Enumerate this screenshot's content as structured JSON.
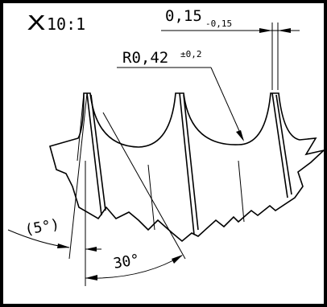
{
  "drawing": {
    "scale": {
      "marker": "X",
      "value": "10:1"
    },
    "width_dimension": {
      "value": "0,15",
      "tolerance": "-0,15"
    },
    "radius_dimension": {
      "value": "R0,42",
      "tolerance": "±0,2"
    },
    "angle_small": "(5°)",
    "angle_large": "30°",
    "colors": {
      "background": "#000000",
      "sheet": "#ffffff",
      "ink": "#000000"
    }
  }
}
